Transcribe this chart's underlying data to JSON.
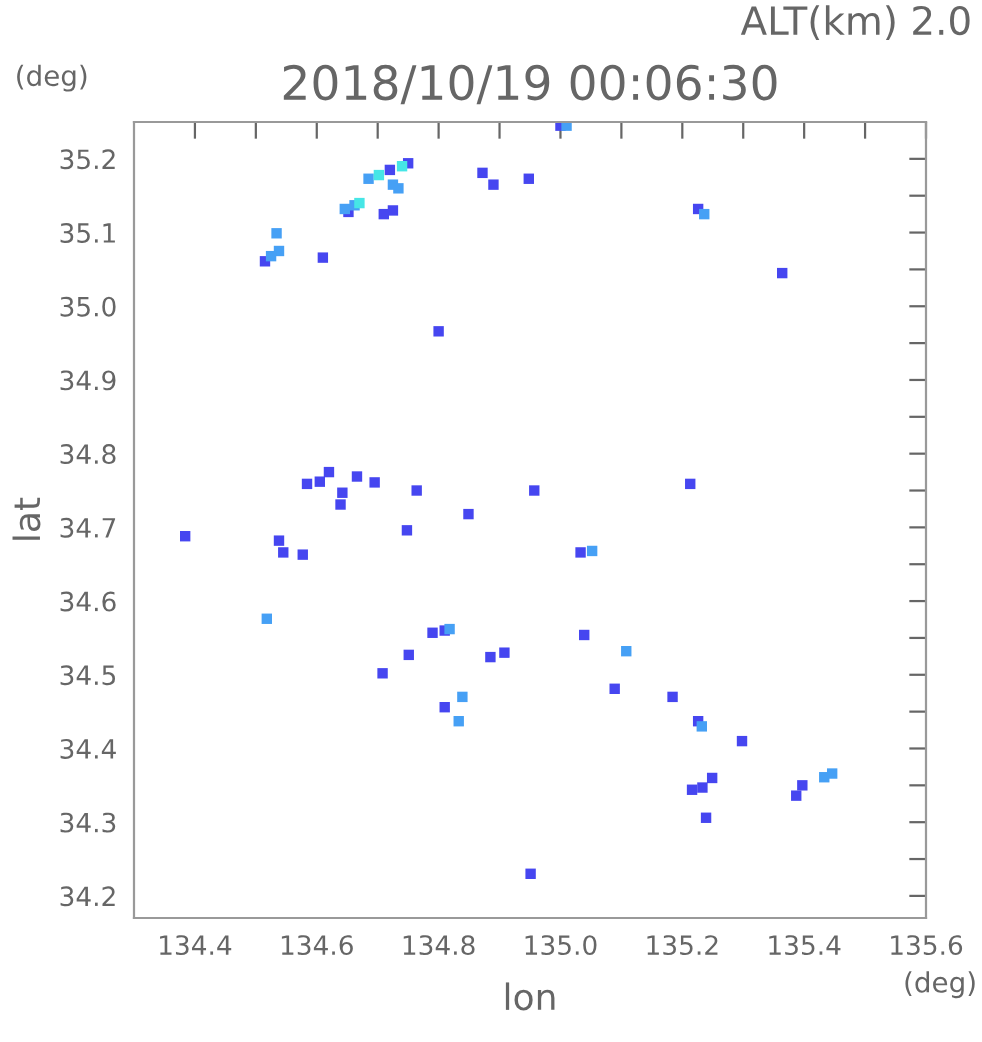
{
  "chart_data": {
    "type": "scatter",
    "title": "2018/10/19 00:06:30",
    "subtitle": "ALT(km) 2.0",
    "xlabel": "lon",
    "ylabel": "lat",
    "annotations": [
      "(deg)",
      "(deg)"
    ],
    "marker": "square",
    "grid": false,
    "legend": false,
    "xlim": [
      134.3,
      135.6
    ],
    "ylim": [
      34.17,
      35.25
    ],
    "xticks": [
      134.4,
      {
        "value": 134.5,
        "label": null
      },
      134.6,
      {
        "value": 134.7,
        "label": null
      },
      134.8,
      {
        "value": 134.9,
        "label": null
      },
      {
        "value": 135.0,
        "label": "135.0"
      },
      {
        "value": 135.1,
        "label": null
      },
      135.2,
      {
        "value": 135.3,
        "label": null
      },
      135.4,
      {
        "value": 135.5,
        "label": null
      },
      135.6
    ],
    "yticks": [
      34.2,
      {
        "value": 34.25,
        "label": null
      },
      34.3,
      {
        "value": 34.35,
        "label": null
      },
      34.4,
      {
        "value": 34.45,
        "label": null
      },
      34.5,
      {
        "value": 34.55,
        "label": null
      },
      34.6,
      {
        "value": 34.65,
        "label": null
      },
      34.7,
      {
        "value": 34.75,
        "label": null
      },
      34.8,
      {
        "value": 34.85,
        "label": null
      },
      34.9,
      {
        "value": 34.95,
        "label": null
      },
      {
        "value": 35.0,
        "label": "35.0"
      },
      {
        "value": 35.05,
        "label": null
      },
      35.1,
      {
        "value": 35.15,
        "label": null
      },
      35.2
    ],
    "series": [
      {
        "color": "#4646f0",
        "x": [
          135.0,
          134.72,
          134.75,
          134.652,
          134.725,
          134.71,
          134.515,
          134.61,
          134.872,
          134.89,
          134.948,
          135.226,
          135.364,
          134.8,
          134.584,
          134.62,
          134.605,
          134.666,
          134.695,
          134.639,
          134.642,
          134.764,
          134.957,
          135.213,
          134.384,
          134.538,
          134.545,
          134.577,
          134.748,
          134.849,
          135.033,
          134.81,
          134.79,
          134.751,
          134.708,
          134.885,
          134.908,
          135.039,
          135.089,
          135.184,
          134.81,
          135.226,
          135.298,
          135.233,
          135.249,
          135.216,
          135.239,
          135.397,
          135.387,
          134.951
        ],
        "values": [
          35.245,
          35.185,
          35.194,
          35.128,
          35.13,
          35.125,
          35.061,
          35.066,
          35.181,
          35.165,
          35.173,
          35.132,
          35.045,
          34.966,
          34.759,
          34.775,
          34.762,
          34.769,
          34.761,
          34.731,
          34.747,
          34.75,
          34.75,
          34.759,
          34.688,
          34.682,
          34.666,
          34.663,
          34.696,
          34.718,
          34.666,
          34.56,
          34.557,
          34.527,
          34.502,
          34.524,
          34.53,
          34.554,
          34.481,
          34.47,
          34.456,
          34.437,
          34.41,
          34.347,
          34.36,
          34.344,
          34.306,
          34.35,
          34.336,
          34.23
        ]
      },
      {
        "color": "#46a0f5",
        "x": [
          135.01,
          134.685,
          134.646,
          134.662,
          134.725,
          134.734,
          134.534,
          134.538,
          134.525,
          135.236,
          134.518,
          134.818,
          135.052,
          135.108,
          134.839,
          134.833,
          135.232,
          135.433,
          135.446
        ],
        "values": [
          35.245,
          35.173,
          35.132,
          35.137,
          35.165,
          35.16,
          35.099,
          35.075,
          35.068,
          35.125,
          34.576,
          34.562,
          34.668,
          34.532,
          34.47,
          34.437,
          34.43,
          34.361,
          34.366
        ]
      },
      {
        "color": "#46e6e6",
        "x": [
          134.702,
          134.67,
          134.74
        ],
        "values": [
          35.178,
          35.14,
          35.19
        ]
      }
    ]
  }
}
